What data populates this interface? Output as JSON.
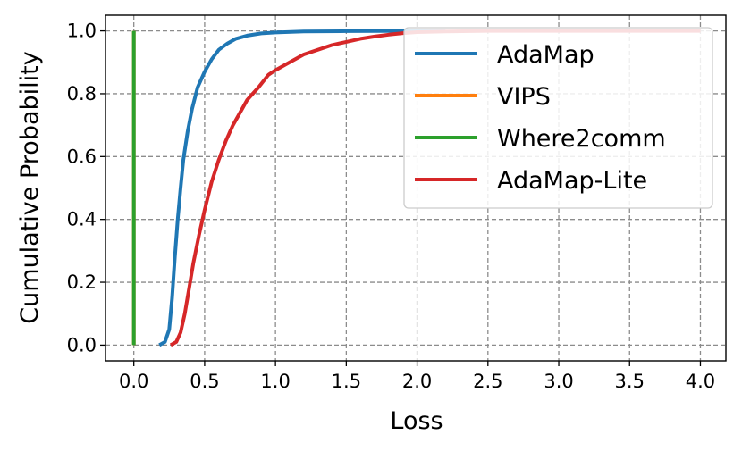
{
  "chart_data": {
    "type": "line",
    "xlabel": "Loss",
    "ylabel": "Cumulative Probability",
    "xlim": [
      -0.2,
      4.18
    ],
    "ylim": [
      -0.05,
      1.05
    ],
    "x_ticks": [
      "0.0",
      "0.5",
      "1.0",
      "1.5",
      "2.0",
      "2.5",
      "3.0",
      "3.5",
      "4.0"
    ],
    "x_tick_values": [
      0,
      0.5,
      1,
      1.5,
      2,
      2.5,
      3,
      3.5,
      4
    ],
    "y_ticks": [
      "0.0",
      "0.2",
      "0.4",
      "0.6",
      "0.8",
      "1.0"
    ],
    "y_tick_values": [
      0,
      0.2,
      0.4,
      0.6,
      0.8,
      1.0
    ],
    "grid": true,
    "legend_position": "top-right",
    "series": [
      {
        "name": "AdaMap",
        "color": "#1f77b4",
        "x": [
          0.18,
          0.22,
          0.25,
          0.27,
          0.29,
          0.31,
          0.33,
          0.35,
          0.38,
          0.41,
          0.45,
          0.5,
          0.55,
          0.6,
          0.66,
          0.72,
          0.8,
          0.9,
          1.0,
          1.2,
          1.5,
          2.0,
          2.2
        ],
        "y": [
          0.0,
          0.01,
          0.05,
          0.15,
          0.28,
          0.4,
          0.5,
          0.59,
          0.68,
          0.75,
          0.82,
          0.87,
          0.91,
          0.94,
          0.96,
          0.975,
          0.985,
          0.992,
          0.995,
          0.998,
          0.999,
          1.0,
          1.0
        ]
      },
      {
        "name": "VIPS",
        "color": "#ff7f0e",
        "x": [
          0.0,
          0.0
        ],
        "y": [
          0.0,
          1.0
        ]
      },
      {
        "name": "Where2comm",
        "color": "#2ca02c",
        "x": [
          0.0,
          0.0
        ],
        "y": [
          0.0,
          1.0
        ]
      },
      {
        "name": "AdaMap-Lite",
        "color": "#d62728",
        "x": [
          0.26,
          0.3,
          0.33,
          0.36,
          0.39,
          0.42,
          0.46,
          0.5,
          0.55,
          0.6,
          0.65,
          0.7,
          0.75,
          0.8,
          0.88,
          0.95,
          1.0,
          1.1,
          1.2,
          1.3,
          1.4,
          1.5,
          1.6,
          1.7,
          1.8,
          1.9,
          2.0,
          2.2,
          2.5,
          4.0
        ],
        "y": [
          0.0,
          0.01,
          0.04,
          0.1,
          0.18,
          0.26,
          0.35,
          0.43,
          0.52,
          0.59,
          0.65,
          0.7,
          0.74,
          0.78,
          0.82,
          0.86,
          0.875,
          0.9,
          0.925,
          0.94,
          0.955,
          0.965,
          0.975,
          0.982,
          0.988,
          0.993,
          0.996,
          0.998,
          1.0,
          1.0
        ]
      }
    ],
    "legend_order": [
      0,
      1,
      2,
      3
    ]
  }
}
